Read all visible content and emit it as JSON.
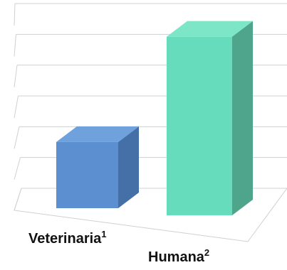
{
  "chart_data": {
    "type": "bar",
    "style": "3d",
    "categories": [
      "Veterinaria",
      "Humana"
    ],
    "category_superscripts": [
      "1",
      "2"
    ],
    "values": [
      4.3,
      11.6
    ],
    "ylim": [
      0,
      12
    ],
    "grid": true,
    "legend": "none",
    "colors": {
      "bar_front": [
        "#5b8fd0",
        "#67dcbc"
      ],
      "bar_top": [
        "#6fa2dd",
        "#7ce6c7"
      ],
      "bar_side": [
        "#456fa7",
        "#4fa58b"
      ],
      "grid": "#d0d0d0"
    }
  }
}
